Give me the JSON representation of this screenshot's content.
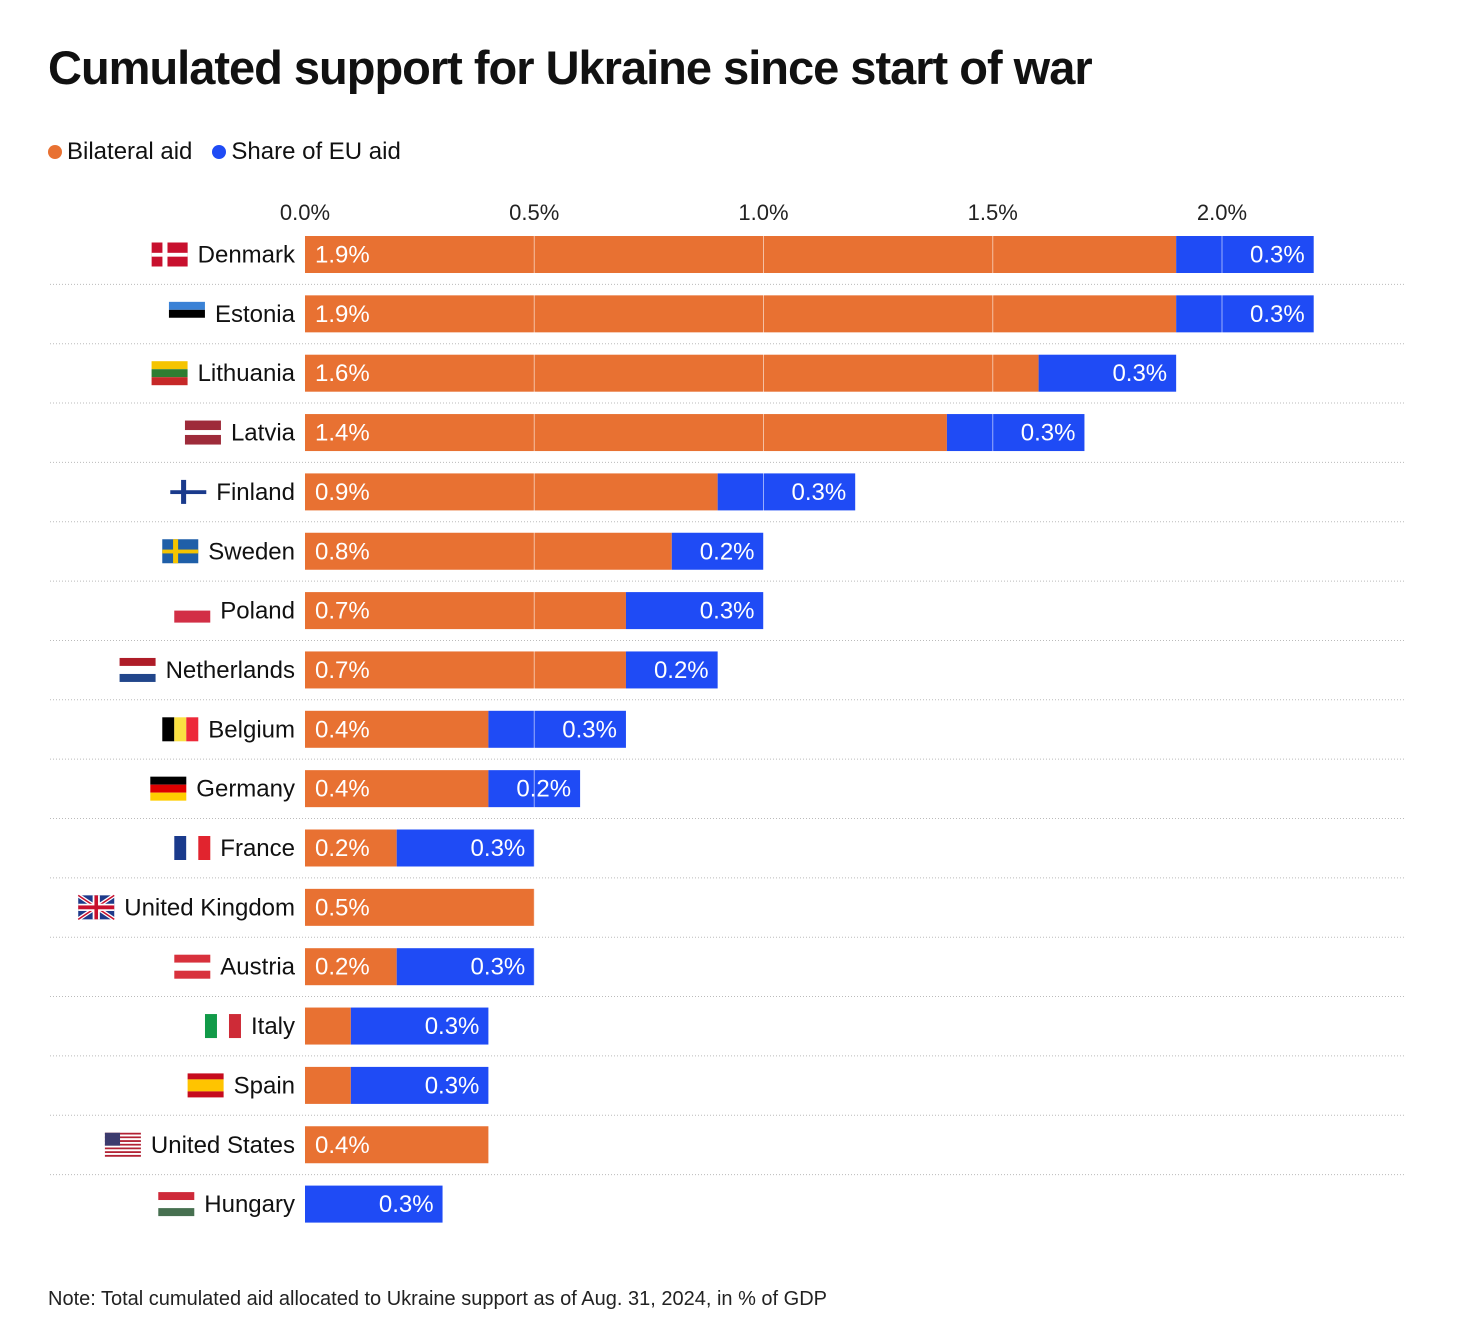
{
  "chart_data": {
    "type": "bar",
    "orientation": "horizontal",
    "stacked": true,
    "title": "Cumulated support for Ukraine since start of war",
    "note": "Note: Total cumulated aid allocated to Ukraine support as of Aug. 31, 2024, in % of GDP",
    "xlim": [
      0,
      2.2
    ],
    "x_ticks": [
      "0.0%",
      "0.5%",
      "1.0%",
      "1.5%",
      "2.0%"
    ],
    "x_tick_values": [
      0,
      0.5,
      1.0,
      1.5,
      2.0
    ],
    "legend_placement": "top-left",
    "grid": true,
    "categories": [
      "Denmark",
      "Estonia",
      "Lithuania",
      "Latvia",
      "Finland",
      "Sweden",
      "Poland",
      "Netherlands",
      "Belgium",
      "Germany",
      "France",
      "United Kingdom",
      "Austria",
      "Italy",
      "Spain",
      "United States",
      "Hungary"
    ],
    "flags": [
      "dk",
      "ee",
      "lt",
      "lv",
      "fi",
      "se",
      "pl",
      "nl",
      "be",
      "de",
      "fr",
      "gb",
      "at",
      "it",
      "es",
      "us",
      "hu"
    ],
    "series": [
      {
        "name": "Bilateral aid",
        "color": "#E87132",
        "values": [
          1.9,
          1.9,
          1.6,
          1.4,
          0.9,
          0.8,
          0.7,
          0.7,
          0.4,
          0.4,
          0.2,
          0.5,
          0.2,
          0.1,
          0.1,
          0.4,
          0.0
        ],
        "labels": [
          "1.9%",
          "1.9%",
          "1.6%",
          "1.4%",
          "0.9%",
          "0.8%",
          "0.7%",
          "0.7%",
          "0.4%",
          "0.4%",
          "0.2%",
          "0.5%",
          "0.2%",
          "",
          "",
          "0.4%",
          ""
        ]
      },
      {
        "name": "Share of EU aid",
        "color": "#1F4BF5",
        "values": [
          0.3,
          0.3,
          0.3,
          0.3,
          0.3,
          0.2,
          0.3,
          0.2,
          0.3,
          0.2,
          0.3,
          0.0,
          0.3,
          0.3,
          0.3,
          0.0,
          0.3
        ],
        "labels": [
          "0.3%",
          "0.3%",
          "0.3%",
          "0.3%",
          "0.3%",
          "0.2%",
          "0.3%",
          "0.2%",
          "0.3%",
          "0.2%",
          "0.3%",
          "",
          "0.3%",
          "0.3%",
          "0.3%",
          "",
          "0.3%"
        ]
      }
    ]
  }
}
